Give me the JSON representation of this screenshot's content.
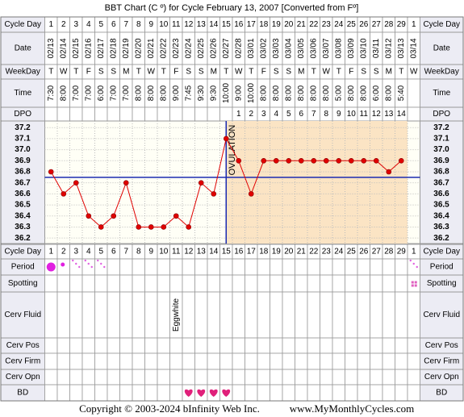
{
  "chart_data": {
    "type": "line",
    "title": "BBT Chart (C º) for Cycle February 13, 2007  [Converted from Fº]",
    "row_labels": {
      "cycle_day": "Cycle Day",
      "date": "Date",
      "weekday": "WeekDay",
      "time": "Time",
      "dpo": "DPO",
      "period": "Period",
      "spotting": "Spotting",
      "cerv_fluid": "Cerv Fluid",
      "cerv_pos": "Cerv Pos",
      "cerv_firm": "Cerv Firm",
      "cerv_opn": "Cerv Opn",
      "bd": "BD"
    },
    "cycle_days": [
      1,
      2,
      3,
      4,
      5,
      6,
      7,
      8,
      9,
      10,
      11,
      12,
      13,
      14,
      15,
      16,
      17,
      18,
      19,
      20,
      21,
      22,
      23,
      24,
      25,
      26,
      27,
      28,
      29,
      1
    ],
    "dates": [
      "02/13",
      "02/14",
      "02/15",
      "02/16",
      "02/17",
      "02/18",
      "02/19",
      "02/20",
      "02/21",
      "02/22",
      "02/23",
      "02/24",
      "02/25",
      "02/26",
      "02/27",
      "02/28",
      "03/01",
      "03/02",
      "03/03",
      "03/04",
      "03/05",
      "03/06",
      "03/07",
      "03/08",
      "03/09",
      "03/10",
      "03/11",
      "03/12",
      "03/13",
      "03/14"
    ],
    "weekdays": [
      "T",
      "W",
      "T",
      "F",
      "S",
      "S",
      "M",
      "T",
      "W",
      "T",
      "F",
      "S",
      "S",
      "M",
      "T",
      "W",
      "T",
      "F",
      "S",
      "S",
      "M",
      "T",
      "W",
      "T",
      "F",
      "S",
      "S",
      "M",
      "T",
      "W"
    ],
    "times": [
      "7:30",
      "8:00",
      "7:00",
      "7:00",
      "6:00",
      "7:00",
      "7:00",
      "8:00",
      "8:00",
      "8:00",
      "9:00",
      "7:45",
      "9:30",
      "9:30",
      "10:00",
      "9:00",
      "10:00",
      "8:00",
      "8:00",
      "8:00",
      "8:00",
      "8:00",
      "8:00",
      "5:00",
      "8:00",
      "8:00",
      "6:00",
      "8:00",
      "5:40",
      null
    ],
    "dpo": [
      null,
      null,
      null,
      null,
      null,
      null,
      null,
      null,
      null,
      null,
      null,
      null,
      null,
      null,
      null,
      1,
      2,
      3,
      4,
      5,
      6,
      7,
      8,
      9,
      10,
      11,
      12,
      13,
      14,
      null
    ],
    "values": [
      36.8,
      36.6,
      36.7,
      36.4,
      36.3,
      36.4,
      36.7,
      36.3,
      36.3,
      36.3,
      36.4,
      36.3,
      36.7,
      36.6,
      37.1,
      36.9,
      36.6,
      36.9,
      36.9,
      36.9,
      36.9,
      36.9,
      36.9,
      36.9,
      36.9,
      36.9,
      36.9,
      36.8,
      36.9,
      null
    ],
    "color": "#e00000",
    "ylim": [
      36.15,
      37.26
    ],
    "yticks": [
      37.2,
      37.1,
      {
        "value": 37,
        "label": "37.0"
      },
      36.9,
      36.8,
      36.7,
      36.6,
      36.5,
      36.4,
      36.3,
      36.2
    ],
    "grid": true,
    "coverline": 36.75,
    "ovulation_day": 15,
    "annotation": "OVULATION",
    "period": [
      "heavy",
      "medium",
      "light",
      "light",
      "light",
      null,
      null,
      null,
      null,
      null,
      null,
      null,
      null,
      null,
      null,
      null,
      null,
      null,
      null,
      null,
      null,
      null,
      null,
      null,
      null,
      null,
      null,
      null,
      null,
      "light"
    ],
    "spotting": [
      null,
      null,
      null,
      null,
      null,
      null,
      null,
      null,
      null,
      null,
      null,
      null,
      null,
      null,
      null,
      null,
      null,
      null,
      null,
      null,
      null,
      null,
      null,
      null,
      null,
      null,
      null,
      null,
      null,
      "spotting"
    ],
    "cerv_fluid": [
      null,
      null,
      null,
      null,
      null,
      null,
      null,
      null,
      null,
      null,
      "Eggwhite",
      null,
      null,
      null,
      null,
      null,
      null,
      null,
      null,
      null,
      null,
      null,
      null,
      null,
      null,
      null,
      null,
      null,
      null,
      null
    ],
    "bd": [
      false,
      false,
      false,
      false,
      false,
      false,
      false,
      false,
      false,
      false,
      false,
      true,
      true,
      true,
      true,
      false,
      false,
      false,
      false,
      false,
      false,
      false,
      false,
      false,
      false,
      false,
      false,
      false,
      false,
      false
    ],
    "footer": [
      "Copyright © 2003-2024 bInfinity Web Inc.",
      "www.MyMonthlyCycles.com"
    ]
  }
}
